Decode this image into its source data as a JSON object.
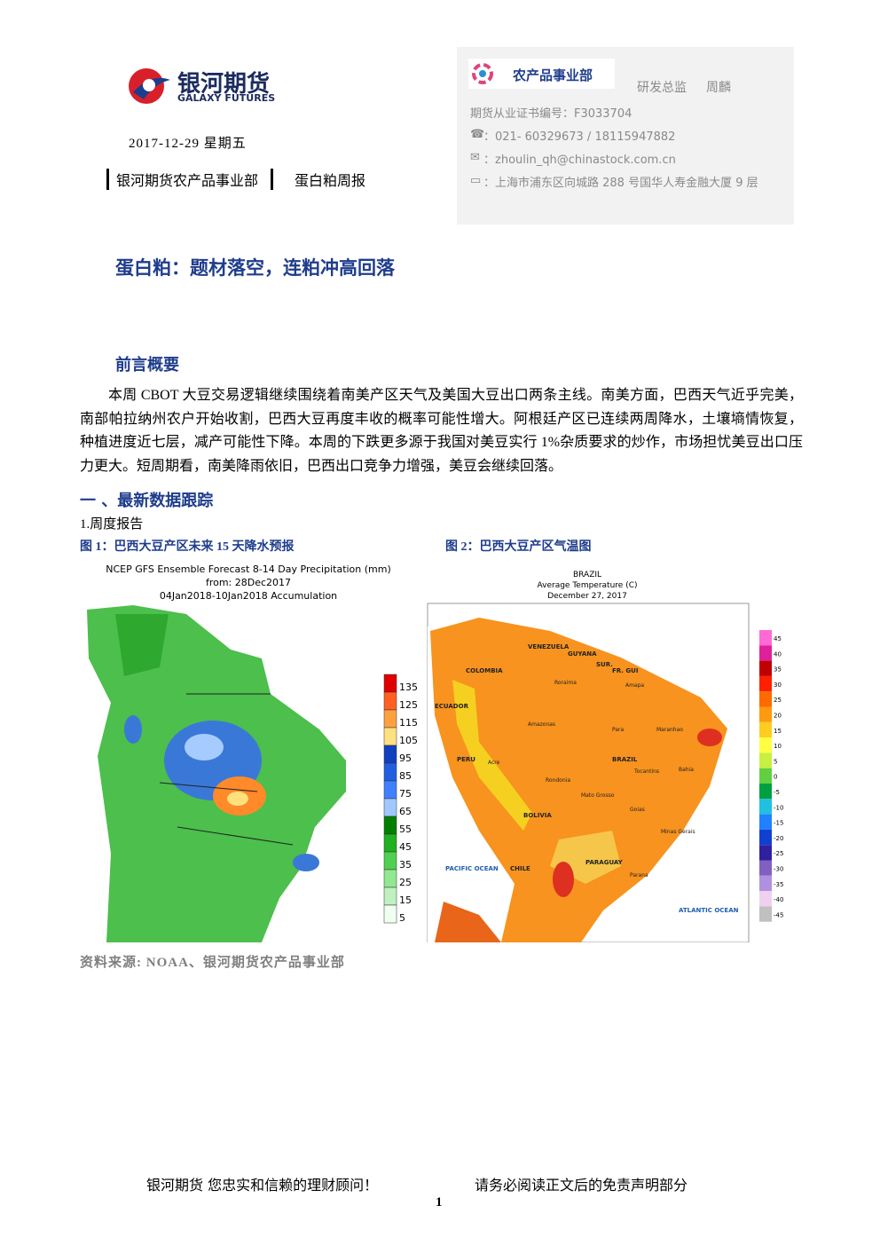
{
  "header": {
    "logo_cn": "银河期货",
    "logo_en": "GALAXY FUTURES",
    "date": "2017-12-29 星期五",
    "dept": "银河期货农产品事业部",
    "report": "蛋白粕周报"
  },
  "contact": {
    "badge": "农产品事业部",
    "role": "研发总监",
    "name": "周麟",
    "license": "期货从业证书编号：F3033704",
    "phone": "：021- 60329673 / 18115947882",
    "email": "：zhoulin_qh@chinastock.com.cn",
    "address": "：上海市浦东区向城路 288 号国华人寿金融大厦 9 层"
  },
  "title": "蛋白粕：题材落空，连粕冲高回落",
  "intro": {
    "heading": "前言概要",
    "text": "本周 CBOT 大豆交易逻辑继续围绕着南美产区天气及美国大豆出口两条主线。南美方面，巴西天气近乎完美，南部帕拉纳州农户开始收割，巴西大豆再度丰收的概率可能性增大。阿根廷产区已连续两周降水，土壤墒情恢复，种植进度近七层，减产可能性下降。本周的下跌更多源于我国对美豆实行 1%杂质要求的炒作，市场担忧美豆出口压力更大。短周期看，南美降雨依旧，巴西出口竞争力增强，美豆会继续回落。"
  },
  "section": {
    "heading": "一 、最新数据跟踪",
    "sub": "1.周度报告"
  },
  "figures": [
    {
      "caption": "图 1：巴西大豆产区未来 15 天降水预报",
      "map_title": [
        "NCEP GFS Ensemble Forecast 8-14 Day Precipitation (mm)",
        "from: 28Dec2017",
        "04Jan2018-10Jan2018 Accumulation"
      ],
      "legend": [
        135,
        125,
        115,
        105,
        95,
        85,
        75,
        65,
        55,
        45,
        35,
        25,
        15,
        5
      ]
    },
    {
      "caption": "图 2：巴西大豆产区气温图",
      "map_title": [
        "BRAZIL",
        "Average Temperature (C)",
        "December 27, 2017"
      ],
      "legend": [
        45,
        40,
        35,
        30,
        25,
        20,
        15,
        10,
        5,
        0,
        -5,
        -10,
        -15,
        -20,
        -25,
        -30,
        -35,
        -40,
        -45
      ],
      "labels": [
        "VENEZUELA",
        "GUYANA",
        "SUR.",
        "FR. GUI",
        "COLOMBIA",
        "ECUADOR",
        "PERU",
        "BRAZIL",
        "BOLIVIA",
        "CHILE",
        "PARAGUAY",
        "PACIFIC OCEAN",
        "ATLANTIC OCEAN",
        "Amazonas",
        "Para",
        "Maranhao",
        "Bahia",
        "Tocantins",
        "Mato Grosso",
        "Goias",
        "Minas Gerais",
        "Parana",
        "Rondonia",
        "Acre",
        "Roraima",
        "Amapa"
      ]
    }
  ],
  "source": "资料来源: NOAA、银河期货农产品事业部",
  "footer": {
    "left": "银河期货  您忠实和信赖的理财顾问！",
    "right": "请务必阅读正文后的免责声明部分",
    "page": "1"
  }
}
